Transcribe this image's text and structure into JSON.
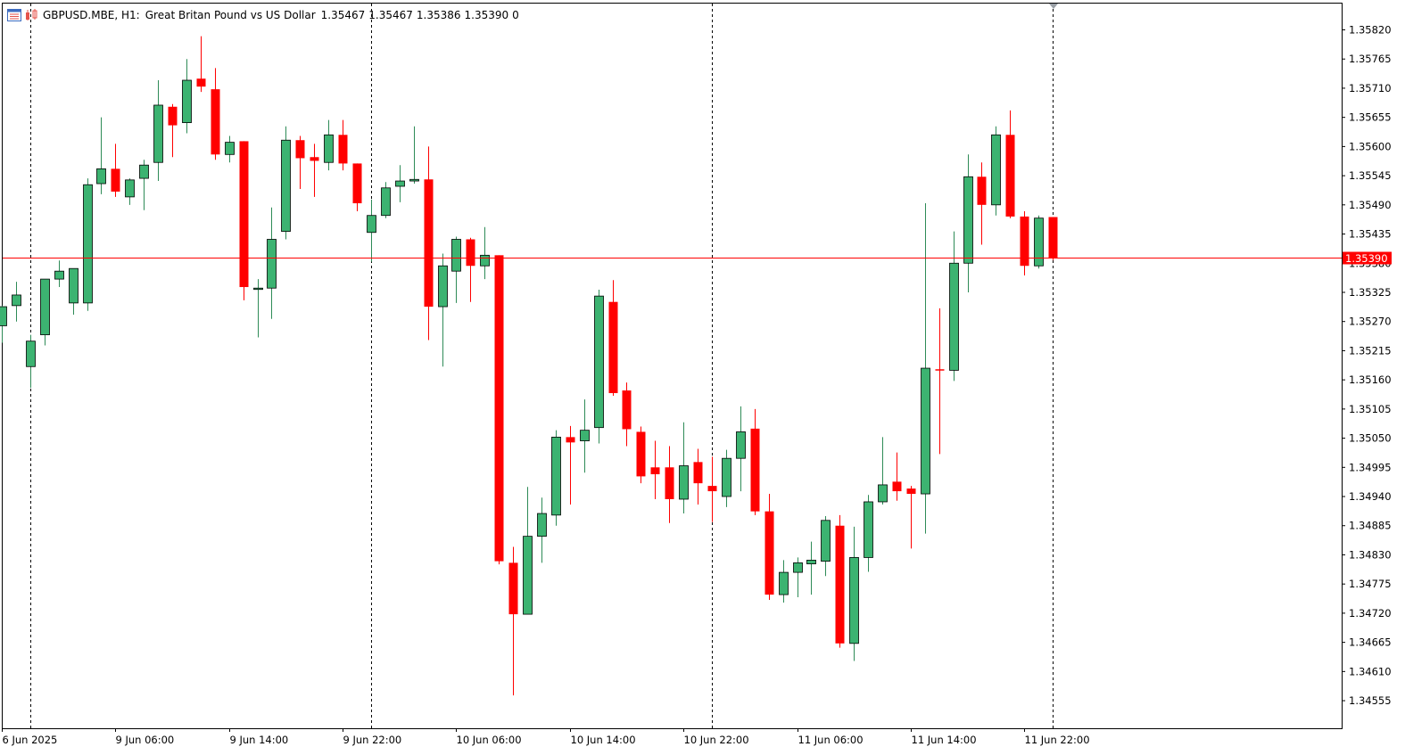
{
  "header": {
    "symbol_info": "GBPUSD.MBE, H1:",
    "description": "Great Britan Pound vs US Dollar",
    "open": "1.35467",
    "high": "1.35467",
    "low": "1.35386",
    "close": "1.35390",
    "volume": "0",
    "icons": [
      "chart-window-icon",
      "trade-levels-icon"
    ]
  },
  "colors": {
    "bull": "#3cb371",
    "bear": "#ff0000",
    "outline": "#000000",
    "price_line": "#ff0000",
    "price_label_bg": "#ff0000",
    "price_label_text": "#ffffff",
    "separator": "#000000",
    "background": "#ffffff"
  },
  "chart_data": {
    "type": "candlestick",
    "symbol": "GBPUSD.MBE",
    "timeframe": "H1",
    "y_axis": {
      "range": [
        1.3451,
        1.3589
      ],
      "ticks": [
        "1.35820",
        "1.35765",
        "1.35710",
        "1.35655",
        "1.35600",
        "1.35545",
        "1.35490",
        "1.35435",
        "1.35380",
        "1.35325",
        "1.35270",
        "1.35215",
        "1.35160",
        "1.35105",
        "1.35050",
        "1.34995",
        "1.34940",
        "1.34885",
        "1.34830",
        "1.34775",
        "1.34720",
        "1.34665",
        "1.34610",
        "1.34555"
      ]
    },
    "x_axis": {
      "labels": [
        "6 Jun 2025",
        "9 Jun 06:00",
        "9 Jun 14:00",
        "9 Jun 22:00",
        "10 Jun 06:00",
        "10 Jun 14:00",
        "10 Jun 22:00",
        "11 Jun 06:00",
        "11 Jun 14:00",
        "11 Jun 22:00"
      ],
      "label_bar_index": [
        0,
        8,
        16,
        24,
        32,
        40,
        48,
        56,
        64,
        72
      ]
    },
    "day_separators_bar_index": [
      2,
      26,
      50,
      74
    ],
    "current_price": "1.35390",
    "candles": [
      {
        "o": 1.35262,
        "h": 1.353,
        "l": 1.3523,
        "c": 1.35298
      },
      {
        "o": 1.353,
        "h": 1.35345,
        "l": 1.3527,
        "c": 1.3532
      },
      {
        "o": 1.35185,
        "h": 1.35245,
        "l": 1.35145,
        "c": 1.35233
      },
      {
        "o": 1.35245,
        "h": 1.3535,
        "l": 1.35225,
        "c": 1.3535
      },
      {
        "o": 1.3535,
        "h": 1.35385,
        "l": 1.35335,
        "c": 1.35365
      },
      {
        "o": 1.35305,
        "h": 1.35365,
        "l": 1.35283,
        "c": 1.3537
      },
      {
        "o": 1.35305,
        "h": 1.3554,
        "l": 1.3529,
        "c": 1.35528
      },
      {
        "o": 1.3553,
        "h": 1.35655,
        "l": 1.3551,
        "c": 1.35558
      },
      {
        "o": 1.35558,
        "h": 1.35605,
        "l": 1.35505,
        "c": 1.35515
      },
      {
        "o": 1.35505,
        "h": 1.3554,
        "l": 1.3549,
        "c": 1.35537
      },
      {
        "o": 1.3554,
        "h": 1.35575,
        "l": 1.3548,
        "c": 1.35565
      },
      {
        "o": 1.3557,
        "h": 1.35725,
        "l": 1.35535,
        "c": 1.35678
      },
      {
        "o": 1.35675,
        "h": 1.3568,
        "l": 1.3558,
        "c": 1.3564
      },
      {
        "o": 1.35645,
        "h": 1.35765,
        "l": 1.35625,
        "c": 1.35725
      },
      {
        "o": 1.35728,
        "h": 1.35808,
        "l": 1.35703,
        "c": 1.35713
      },
      {
        "o": 1.35708,
        "h": 1.35748,
        "l": 1.35575,
        "c": 1.35585
      },
      {
        "o": 1.35585,
        "h": 1.3562,
        "l": 1.3557,
        "c": 1.35608
      },
      {
        "o": 1.3561,
        "h": 1.3561,
        "l": 1.3531,
        "c": 1.35335
      },
      {
        "o": 1.35333,
        "h": 1.3535,
        "l": 1.3524,
        "c": 1.35333
      },
      {
        "o": 1.35333,
        "h": 1.35485,
        "l": 1.35275,
        "c": 1.35425
      },
      {
        "o": 1.3544,
        "h": 1.35638,
        "l": 1.35425,
        "c": 1.35612
      },
      {
        "o": 1.35612,
        "h": 1.3562,
        "l": 1.3552,
        "c": 1.35578
      },
      {
        "o": 1.3558,
        "h": 1.35605,
        "l": 1.35505,
        "c": 1.35573
      },
      {
        "o": 1.3557,
        "h": 1.3565,
        "l": 1.35555,
        "c": 1.35622
      },
      {
        "o": 1.35622,
        "h": 1.3565,
        "l": 1.35555,
        "c": 1.35568
      },
      {
        "o": 1.35568,
        "h": 1.35568,
        "l": 1.35478,
        "c": 1.35493
      },
      {
        "o": 1.35438,
        "h": 1.355,
        "l": 1.35383,
        "c": 1.3547
      },
      {
        "o": 1.3547,
        "h": 1.35533,
        "l": 1.35465,
        "c": 1.35522
      },
      {
        "o": 1.35525,
        "h": 1.35565,
        "l": 1.35495,
        "c": 1.35535
      },
      {
        "o": 1.35535,
        "h": 1.35638,
        "l": 1.3553,
        "c": 1.35538
      },
      {
        "o": 1.35538,
        "h": 1.356,
        "l": 1.35235,
        "c": 1.35298
      },
      {
        "o": 1.35298,
        "h": 1.35398,
        "l": 1.35185,
        "c": 1.35375
      },
      {
        "o": 1.35365,
        "h": 1.3543,
        "l": 1.35305,
        "c": 1.35425
      },
      {
        "o": 1.35425,
        "h": 1.35428,
        "l": 1.35307,
        "c": 1.35375
      },
      {
        "o": 1.35375,
        "h": 1.35448,
        "l": 1.3535,
        "c": 1.35395
      },
      {
        "o": 1.35395,
        "h": 1.35395,
        "l": 1.34812,
        "c": 1.34818
      },
      {
        "o": 1.34815,
        "h": 1.34845,
        "l": 1.34565,
        "c": 1.34718
      },
      {
        "o": 1.34718,
        "h": 1.34958,
        "l": 1.34718,
        "c": 1.34865
      },
      {
        "o": 1.34865,
        "h": 1.34938,
        "l": 1.34815,
        "c": 1.34908
      },
      {
        "o": 1.34905,
        "h": 1.35065,
        "l": 1.34885,
        "c": 1.35052
      },
      {
        "o": 1.35052,
        "h": 1.35073,
        "l": 1.34925,
        "c": 1.35042
      },
      {
        "o": 1.35045,
        "h": 1.35123,
        "l": 1.34985,
        "c": 1.35065
      },
      {
        "o": 1.3507,
        "h": 1.3533,
        "l": 1.3504,
        "c": 1.35318
      },
      {
        "o": 1.35307,
        "h": 1.35348,
        "l": 1.3513,
        "c": 1.35135
      },
      {
        "o": 1.3514,
        "h": 1.35155,
        "l": 1.35035,
        "c": 1.35067
      },
      {
        "o": 1.35062,
        "h": 1.35072,
        "l": 1.34965,
        "c": 1.34978
      },
      {
        "o": 1.34995,
        "h": 1.35045,
        "l": 1.34935,
        "c": 1.34982
      },
      {
        "o": 1.34995,
        "h": 1.35035,
        "l": 1.3489,
        "c": 1.34935
      },
      {
        "o": 1.34935,
        "h": 1.3508,
        "l": 1.34908,
        "c": 1.34998
      },
      {
        "o": 1.35005,
        "h": 1.3503,
        "l": 1.34925,
        "c": 1.34965
      },
      {
        "o": 1.3496,
        "h": 1.35015,
        "l": 1.34892,
        "c": 1.3495
      },
      {
        "o": 1.3494,
        "h": 1.35028,
        "l": 1.3492,
        "c": 1.35012
      },
      {
        "o": 1.35012,
        "h": 1.3511,
        "l": 1.3495,
        "c": 1.35062
      },
      {
        "o": 1.35068,
        "h": 1.35105,
        "l": 1.34905,
        "c": 1.34912
      },
      {
        "o": 1.34912,
        "h": 1.34945,
        "l": 1.34745,
        "c": 1.34755
      },
      {
        "o": 1.34755,
        "h": 1.3482,
        "l": 1.3474,
        "c": 1.34797
      },
      {
        "o": 1.34797,
        "h": 1.34825,
        "l": 1.3475,
        "c": 1.34815
      },
      {
        "o": 1.34813,
        "h": 1.34855,
        "l": 1.34755,
        "c": 1.3482
      },
      {
        "o": 1.34818,
        "h": 1.34903,
        "l": 1.3479,
        "c": 1.34895
      },
      {
        "o": 1.34885,
        "h": 1.34905,
        "l": 1.34655,
        "c": 1.34663
      },
      {
        "o": 1.34663,
        "h": 1.34883,
        "l": 1.3463,
        "c": 1.34825
      },
      {
        "o": 1.34825,
        "h": 1.34943,
        "l": 1.34798,
        "c": 1.3493
      },
      {
        "o": 1.3493,
        "h": 1.35052,
        "l": 1.34925,
        "c": 1.34962
      },
      {
        "o": 1.34968,
        "h": 1.35023,
        "l": 1.34932,
        "c": 1.3495
      },
      {
        "o": 1.34955,
        "h": 1.3496,
        "l": 1.34842,
        "c": 1.34945
      },
      {
        "o": 1.34945,
        "h": 1.35493,
        "l": 1.3487,
        "c": 1.35182
      },
      {
        "o": 1.3518,
        "h": 1.35295,
        "l": 1.3502,
        "c": 1.35178
      },
      {
        "o": 1.35178,
        "h": 1.3544,
        "l": 1.35158,
        "c": 1.3538
      },
      {
        "o": 1.3538,
        "h": 1.35585,
        "l": 1.35325,
        "c": 1.35543
      },
      {
        "o": 1.35543,
        "h": 1.3557,
        "l": 1.35415,
        "c": 1.3549
      },
      {
        "o": 1.3549,
        "h": 1.35638,
        "l": 1.3547,
        "c": 1.35622
      },
      {
        "o": 1.35622,
        "h": 1.35668,
        "l": 1.35465,
        "c": 1.35468
      },
      {
        "o": 1.35468,
        "h": 1.35478,
        "l": 1.35357,
        "c": 1.35375
      },
      {
        "o": 1.35375,
        "h": 1.3547,
        "l": 1.3537,
        "c": 1.35465
      },
      {
        "o": 1.35467,
        "h": 1.35467,
        "l": 1.35386,
        "c": 1.3539
      }
    ]
  }
}
